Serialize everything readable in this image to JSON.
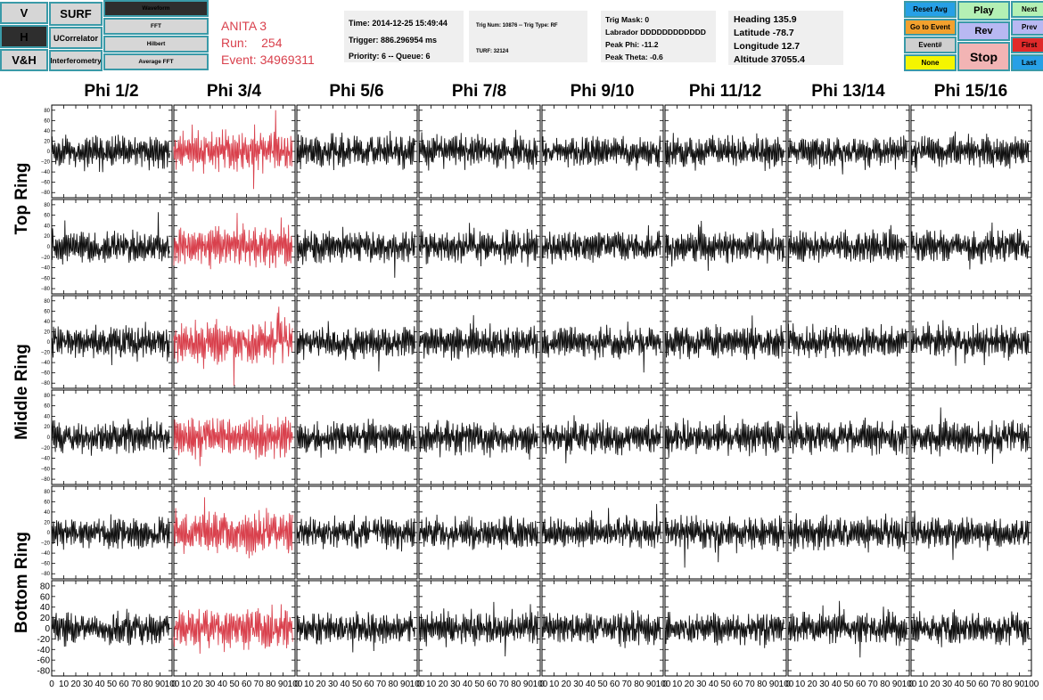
{
  "left_buttons": {
    "v": "V",
    "h": "H",
    "vh": "V&H",
    "surf": "SURF",
    "ucorrelator": "UCorrelator",
    "interferometry": "Interferometry",
    "waveform": "Waveform",
    "fft": "FFT",
    "hilbert": "Hilbert",
    "average_fft": "Average FFT"
  },
  "title": {
    "line1": "ANITA 3",
    "line2": "Run:    254",
    "line3": "Event: 34969311",
    "color": "#d9414d"
  },
  "info_time": {
    "time": "Time: 2014-12-25 15:49:44",
    "trigger": "Trigger: 886.296954 ms",
    "priority": "Priority: 6 -- Queue: 6"
  },
  "info_trig": {
    "trig": "Trig Num: 10876 -- Trig Type: RF",
    "turf": "TURF: 32124"
  },
  "info_mask": {
    "mask": "Trig Mask: 0",
    "labrador": "Labrador DDDDDDDDDDDD",
    "peak_phi": "Peak Phi: -11.2",
    "peak_theta": "Peak Theta: -0.6"
  },
  "info_gps": {
    "heading": "Heading 135.9",
    "latitude": "Latitude -78.7",
    "longitude": "Longitude 12.7",
    "altitude": "Altitude 37055.4"
  },
  "right_buttons": {
    "reset_avg": "Reset Avg",
    "go_to_event": "Go to Event",
    "event_num": "Event#",
    "none": "None",
    "play": "Play",
    "rev": "Rev",
    "stop": "Stop",
    "next": "Next",
    "prev": "Prev",
    "first": "First",
    "last": "Last"
  },
  "colors": {
    "highlight_trace": "#d9414d",
    "trace": "#111111",
    "button_border": "#3a9aa8",
    "reset_avg_bg": "#27a0e6",
    "go_to_event_bg": "#f2a12e",
    "event_num_bg": "#cfcfcf",
    "none_bg": "#f5f500",
    "play_bg": "#b4f0b4",
    "rev_bg": "#b8b8f2",
    "stop_bg": "#f2b4b4",
    "next_bg": "#b4f0b4",
    "prev_bg": "#b8b8f2",
    "first_bg": "#e02a2a",
    "last_bg": "#27a0e6"
  },
  "chart_data": {
    "type": "line",
    "title": "",
    "columns": [
      "Phi 1/2",
      "Phi 3/4",
      "Phi 5/6",
      "Phi 7/8",
      "Phi 9/10",
      "Phi 11/12",
      "Phi 13/14",
      "Phi 15/16"
    ],
    "rows": [
      "Top Ring",
      "Middle Ring",
      "Bottom Ring"
    ],
    "xlim": [
      0,
      100
    ],
    "ylim": [
      -90,
      90
    ],
    "x_ticks": [
      "0",
      "10",
      "20",
      "30",
      "40",
      "50",
      "60",
      "70",
      "80",
      "90",
      "100"
    ],
    "y_ticks_small": [
      "80",
      "60",
      "40",
      "20",
      "0",
      "−20",
      "−40",
      "−60",
      "−80"
    ],
    "y_ticks_large": [
      "80",
      "60",
      "40",
      "20",
      "0",
      "-20",
      "-40",
      "-60",
      "-80"
    ],
    "highlight_column": 1
  }
}
